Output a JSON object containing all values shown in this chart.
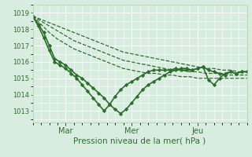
{
  "title": "",
  "xlabel": "Pression niveau de la mer( hPa )",
  "ylabel": "",
  "bg_color": "#d8ede0",
  "grid_color": "#ffffff",
  "line_color": "#2d6e2d",
  "ylim": [
    1012.3,
    1019.5
  ],
  "xlim": [
    0,
    78
  ],
  "yticks": [
    1013,
    1014,
    1015,
    1016,
    1017,
    1018,
    1019
  ],
  "xtick_positions": [
    12,
    36,
    60
  ],
  "xtick_labels": [
    "Mar",
    "Mer",
    "Jeu"
  ],
  "series": [
    {
      "x": [
        0,
        3,
        6,
        9,
        12,
        15,
        18,
        21,
        24,
        27,
        30,
        33,
        36,
        39,
        42,
        45,
        48,
        51,
        54,
        57,
        60,
        63,
        66,
        69,
        72,
        75,
        78
      ],
      "y": [
        1018.8,
        1018.6,
        1018.4,
        1018.2,
        1018.0,
        1017.8,
        1017.6,
        1017.4,
        1017.2,
        1017.0,
        1016.8,
        1016.6,
        1016.5,
        1016.4,
        1016.3,
        1016.2,
        1016.1,
        1016.0,
        1015.9,
        1015.8,
        1015.7,
        1015.6,
        1015.6,
        1015.5,
        1015.5,
        1015.4,
        1015.4
      ],
      "lw": 0.9,
      "marker": "",
      "ls": "--"
    },
    {
      "x": [
        0,
        3,
        6,
        9,
        12,
        15,
        18,
        21,
        24,
        27,
        30,
        33,
        36,
        39,
        42,
        45,
        48,
        51,
        54,
        57,
        60,
        63,
        66,
        69,
        72,
        75,
        78
      ],
      "y": [
        1018.8,
        1018.5,
        1018.2,
        1017.9,
        1017.6,
        1017.3,
        1017.1,
        1016.9,
        1016.7,
        1016.5,
        1016.3,
        1016.1,
        1016.0,
        1015.9,
        1015.8,
        1015.7,
        1015.6,
        1015.5,
        1015.5,
        1015.4,
        1015.4,
        1015.3,
        1015.3,
        1015.3,
        1015.2,
        1015.2,
        1015.2
      ],
      "lw": 0.9,
      "marker": "",
      "ls": "--"
    },
    {
      "x": [
        0,
        3,
        6,
        9,
        12,
        15,
        18,
        21,
        24,
        27,
        30,
        33,
        36,
        39,
        42,
        45,
        48,
        51,
        54,
        57,
        60,
        63,
        66,
        69,
        72,
        75,
        78
      ],
      "y": [
        1018.8,
        1018.3,
        1017.8,
        1017.4,
        1017.1,
        1016.8,
        1016.6,
        1016.4,
        1016.2,
        1016.0,
        1015.8,
        1015.6,
        1015.5,
        1015.4,
        1015.3,
        1015.3,
        1015.2,
        1015.2,
        1015.1,
        1015.1,
        1015.0,
        1015.0,
        1015.0,
        1015.0,
        1015.0,
        1015.0,
        1015.0
      ],
      "lw": 0.9,
      "marker": "",
      "ls": "--"
    },
    {
      "x": [
        0,
        2,
        4,
        6,
        8,
        10,
        12,
        14,
        16,
        18,
        20,
        22,
        24,
        26,
        28,
        30,
        32,
        34,
        36,
        38,
        40,
        42,
        44,
        46,
        48,
        50,
        52,
        54,
        56,
        58,
        60,
        62,
        64,
        66,
        68,
        70,
        72,
        74,
        76,
        78
      ],
      "y": [
        1018.8,
        1018.3,
        1017.8,
        1017.0,
        1016.2,
        1016.0,
        1015.8,
        1015.5,
        1015.2,
        1015.0,
        1014.7,
        1014.4,
        1014.1,
        1013.8,
        1013.4,
        1013.1,
        1012.85,
        1013.1,
        1013.5,
        1013.9,
        1014.3,
        1014.6,
        1014.8,
        1015.0,
        1015.2,
        1015.4,
        1015.5,
        1015.6,
        1015.6,
        1015.5,
        1015.6,
        1015.7,
        1015.5,
        1015.4,
        1015.3,
        1015.2,
        1015.4,
        1015.3,
        1015.4,
        1015.4
      ],
      "lw": 1.2,
      "marker": "D",
      "ms": 2.2,
      "ls": "-"
    },
    {
      "x": [
        0,
        2,
        4,
        6,
        8,
        10,
        12,
        14,
        16,
        18,
        20,
        22,
        24,
        26,
        28,
        30,
        32,
        34,
        36,
        38,
        40,
        42,
        44,
        46,
        48,
        50,
        52,
        54,
        56,
        58,
        60,
        62,
        64,
        66,
        68,
        70,
        72,
        74,
        76,
        78
      ],
      "y": [
        1018.8,
        1018.2,
        1017.5,
        1016.7,
        1016.0,
        1015.8,
        1015.6,
        1015.3,
        1015.0,
        1014.6,
        1014.2,
        1013.8,
        1013.4,
        1013.0,
        1013.4,
        1013.9,
        1014.3,
        1014.6,
        1014.8,
        1015.0,
        1015.2,
        1015.4,
        1015.5,
        1015.5,
        1015.5,
        1015.5,
        1015.6,
        1015.5,
        1015.5,
        1015.5,
        1015.6,
        1015.7,
        1014.9,
        1014.6,
        1015.0,
        1015.3,
        1015.4,
        1015.3,
        1015.4,
        1015.4
      ],
      "lw": 1.2,
      "marker": "D",
      "ms": 2.2,
      "ls": "-"
    }
  ]
}
